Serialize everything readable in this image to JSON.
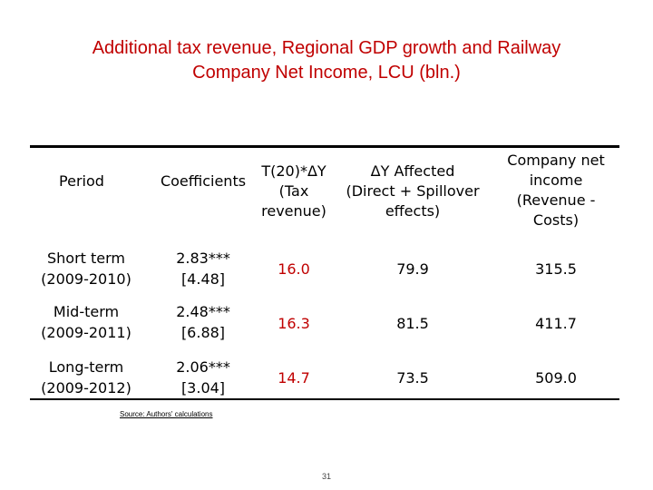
{
  "title": {
    "line1": "Additional tax revenue, Regional GDP growth and Railway",
    "line2": "Company Net Income, LCU (bln.)"
  },
  "table": {
    "headers": {
      "period": "Period",
      "coefficients": "Coefficients",
      "tax_revenue": [
        "T(20)*ΔY",
        "(Tax",
        "revenue)"
      ],
      "delta_y": [
        "ΔY Affected",
        "(Direct + Spillover",
        "effects)"
      ],
      "net_income": [
        "Company net",
        "income",
        "(Revenue -",
        "Costs)"
      ]
    },
    "rows": [
      {
        "period": [
          "Short term",
          "(2009-2010)"
        ],
        "coefficient": [
          "2.83***",
          "[4.48]"
        ],
        "tax_revenue": "16.0",
        "delta_y": "79.9",
        "net_income": "315.5"
      },
      {
        "period": [
          "Mid-term",
          "(2009-2011)"
        ],
        "coefficient": [
          "2.48***",
          "[6.88]"
        ],
        "tax_revenue": "16.3",
        "delta_y": "81.5",
        "net_income": "411.7"
      },
      {
        "period": [
          "Long-term",
          "(2009-2012)"
        ],
        "coefficient": [
          "2.06***",
          "[3.04]"
        ],
        "tax_revenue": "14.7",
        "delta_y": "73.5",
        "net_income": "509.0"
      }
    ]
  },
  "source": "Source: Authors' calculations",
  "page_number": "31",
  "colors": {
    "title": "#c00000",
    "highlight": "#c00000",
    "text": "#000000"
  }
}
